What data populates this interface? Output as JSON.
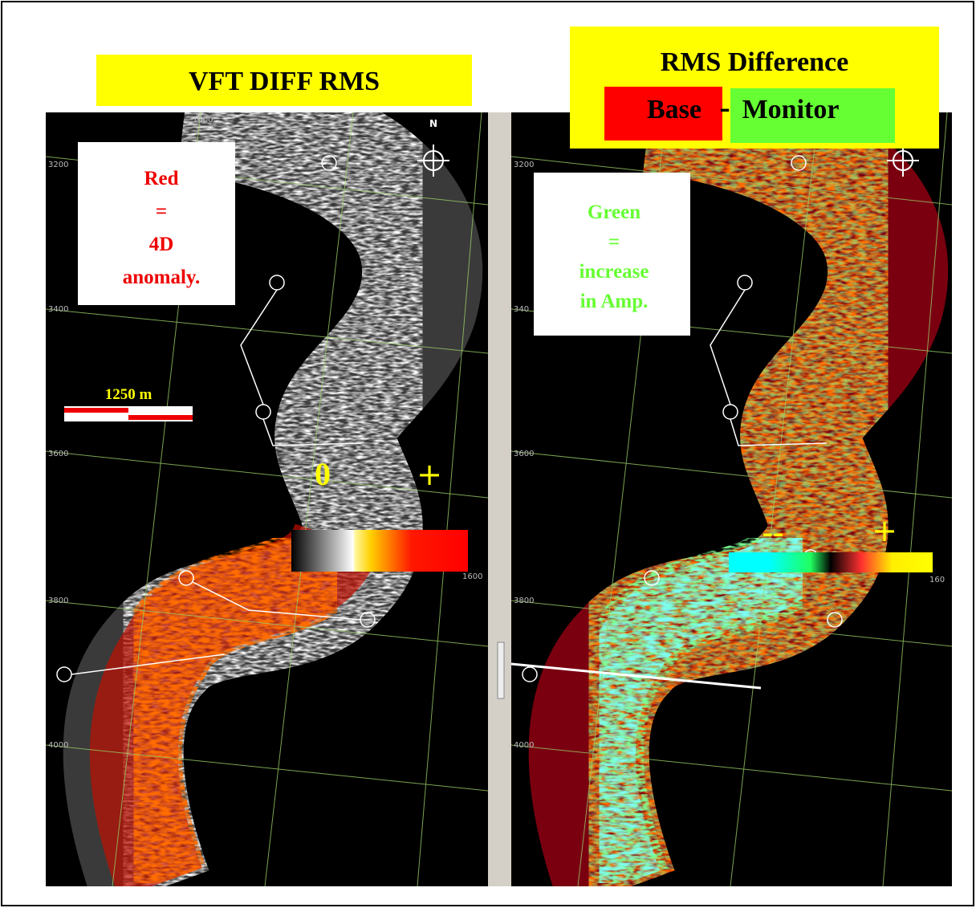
{
  "left_panel": {
    "title": "VFT DIFF RMS",
    "note": [
      "Red",
      "=",
      "4D",
      "anomaly."
    ],
    "scale_label": "1250 m",
    "legend": {
      "low": "0",
      "high": "+"
    },
    "grid_labels": [
      "1600",
      "3200",
      "3400",
      "3600",
      "3800",
      "4000",
      "1600"
    ],
    "north": "N"
  },
  "right_panel": {
    "title": "RMS Difference",
    "base": "Base",
    "separator": "-",
    "monitor": "Monitor",
    "note": [
      "Green",
      "=",
      "increase",
      "in Amp."
    ],
    "legend": {
      "low": "--",
      "high": "+"
    },
    "grid_labels": [
      "3200",
      "340",
      "3600",
      "3800",
      "4000",
      "160"
    ]
  }
}
